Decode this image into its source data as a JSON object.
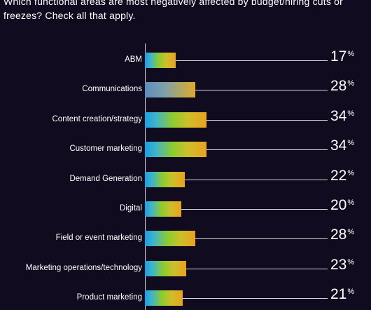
{
  "question": "Which functional areas are most negatively affected by budget/hiring cuts or freezes? Check all that apply.",
  "chart_data": {
    "type": "bar",
    "orientation": "horizontal",
    "categories": [
      "ABM",
      "Communications",
      "Content creation/strategy",
      "Customer marketing",
      "Demand Generation",
      "Digital",
      "Field or event marketing",
      "Marketing operations/technology",
      "Product marketing"
    ],
    "values": [
      17,
      28,
      34,
      34,
      22,
      20,
      28,
      23,
      21
    ],
    "value_suffix": "%",
    "value_labels": [
      "17",
      "28",
      "34",
      "34",
      "22",
      "20",
      "28",
      "23",
      "21"
    ]
  }
}
